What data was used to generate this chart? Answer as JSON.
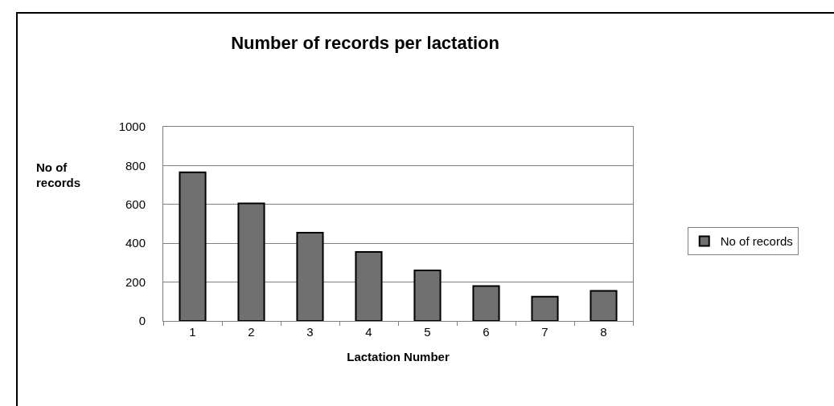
{
  "chart_data": {
    "type": "bar",
    "title": "Number of records per lactation",
    "xlabel": "Lactation Number",
    "ylabel": "No of records",
    "categories": [
      "1",
      "2",
      "3",
      "4",
      "5",
      "6",
      "7",
      "8"
    ],
    "series": [
      {
        "name": "No of records",
        "color": "#707070",
        "values": [
          765,
          605,
          455,
          355,
          260,
          180,
          125,
          155
        ]
      }
    ],
    "ylim": [
      0,
      1000
    ],
    "yticks": [
      0,
      200,
      400,
      600,
      800,
      1000
    ],
    "grid": "y",
    "legend": "right"
  }
}
